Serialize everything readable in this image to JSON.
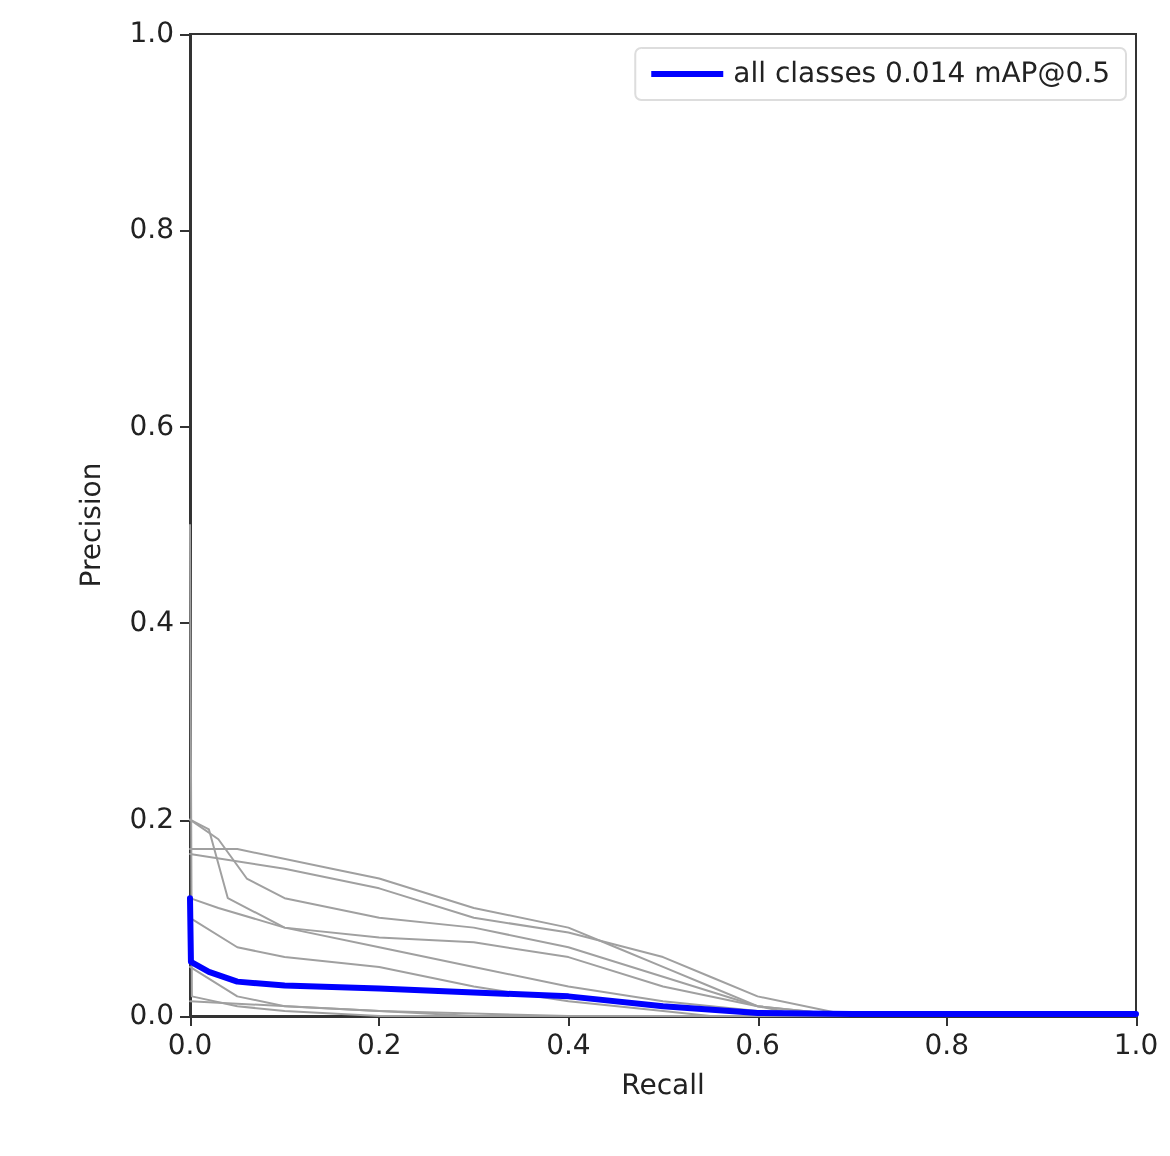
{
  "chart_data": {
    "type": "line",
    "xlabel": "Recall",
    "ylabel": "Precision",
    "xlim": [
      0,
      1
    ],
    "ylim": [
      0,
      1
    ],
    "xticks": [
      {
        "value": 0,
        "label": "0.0"
      },
      0.2,
      0.4,
      0.6,
      0.8,
      {
        "value": 1,
        "label": "1.0"
      }
    ],
    "yticks": [
      {
        "value": 0,
        "label": "0.0"
      },
      0.2,
      0.4,
      0.6,
      0.8,
      {
        "value": 1,
        "label": "1.0"
      }
    ],
    "grid": false,
    "legend": "top right",
    "marker": "none",
    "line_style": "solid",
    "series": [
      {
        "color": "#a0a0a0",
        "x": [
          0,
          0.02,
          0.04,
          0.1,
          0.2,
          0.3,
          0.4,
          0.5,
          0.6,
          0.7,
          1
        ],
        "values": [
          0.2,
          0.19,
          0.12,
          0.09,
          0.07,
          0.05,
          0.03,
          0.015,
          0.005,
          0,
          0
        ]
      },
      {
        "color": "#a0a0a0",
        "x": [
          0,
          0.03,
          0.06,
          0.1,
          0.2,
          0.3,
          0.4,
          0.5,
          0.6,
          0.7,
          1
        ],
        "values": [
          0.2,
          0.18,
          0.14,
          0.12,
          0.1,
          0.09,
          0.07,
          0.04,
          0.01,
          0,
          0
        ]
      },
      {
        "color": "#a0a0a0",
        "x": [
          0,
          0.05,
          0.15,
          0.2,
          0.3,
          0.4,
          0.45,
          0.5,
          0.55,
          0.6,
          0.7,
          1
        ],
        "values": [
          0.17,
          0.17,
          0.15,
          0.14,
          0.11,
          0.09,
          0.07,
          0.05,
          0.03,
          0.01,
          0,
          0
        ]
      },
      {
        "color": "#a0a0a0",
        "x": [
          0,
          0.1,
          0.2,
          0.3,
          0.4,
          0.5,
          0.55,
          0.6,
          0.7,
          1
        ],
        "values": [
          0.165,
          0.15,
          0.13,
          0.1,
          0.085,
          0.06,
          0.04,
          0.02,
          0,
          0
        ]
      },
      {
        "color": "#a0a0a0",
        "x": [
          0,
          0.03,
          0.1,
          0.2,
          0.3,
          0.4,
          0.5,
          0.6,
          0.65,
          1
        ],
        "values": [
          0.12,
          0.11,
          0.09,
          0.08,
          0.075,
          0.06,
          0.03,
          0.01,
          0,
          0
        ]
      },
      {
        "color": "#a0a0a0",
        "x": [
          0,
          0.05,
          0.1,
          0.2,
          0.3,
          0.4,
          0.5,
          0.55,
          1
        ],
        "values": [
          0.1,
          0.07,
          0.06,
          0.05,
          0.03,
          0.015,
          0.005,
          0,
          0
        ]
      },
      {
        "color": "#a0a0a0",
        "x": [
          0,
          0.05,
          0.1,
          0.2,
          0.3,
          1
        ],
        "values": [
          0.05,
          0.02,
          0.01,
          0.005,
          0,
          0
        ]
      },
      {
        "color": "#a0a0a0",
        "x": [
          0,
          0.002,
          0.05,
          0.1,
          0.2,
          1
        ],
        "values": [
          0.5,
          0.02,
          0.01,
          0.005,
          0,
          0
        ]
      },
      {
        "color": "#a0a0a0",
        "x": [
          0,
          0.2,
          0.4,
          1
        ],
        "values": [
          0.015,
          0.005,
          0,
          0
        ]
      },
      {
        "name": "all classes 0.014 mAP@0.5",
        "color": "#0000ff",
        "x": [
          0,
          0.001,
          0.02,
          0.05,
          0.1,
          0.2,
          0.3,
          0.4,
          0.5,
          0.6,
          0.7,
          1
        ],
        "values": [
          0.12,
          0.055,
          0.045,
          0.035,
          0.031,
          0.028,
          0.024,
          0.02,
          0.01,
          0.003,
          0.002,
          0.002
        ]
      }
    ]
  }
}
